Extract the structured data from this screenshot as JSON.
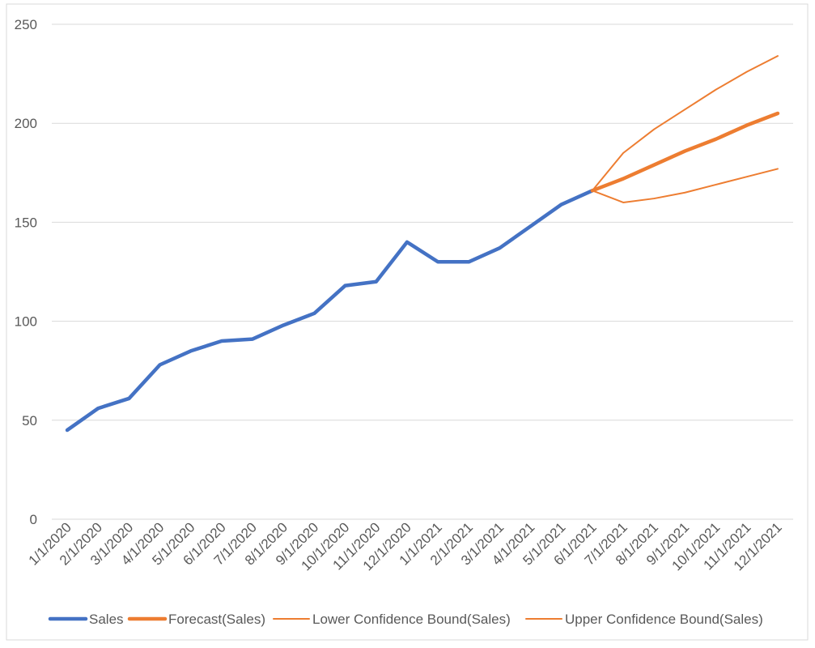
{
  "chart_data": {
    "type": "line",
    "title": "",
    "xlabel": "",
    "ylabel": "",
    "ylim": [
      0,
      250
    ],
    "yticks": [
      0,
      50,
      100,
      150,
      200,
      250
    ],
    "grid": true,
    "legend_position": "bottom",
    "categories": [
      "1/1/2020",
      "2/1/2020",
      "3/1/2020",
      "4/1/2020",
      "5/1/2020",
      "6/1/2020",
      "7/1/2020",
      "8/1/2020",
      "9/1/2020",
      "10/1/2020",
      "11/1/2020",
      "12/1/2020",
      "1/1/2021",
      "2/1/2021",
      "3/1/2021",
      "4/1/2021",
      "5/1/2021",
      "6/1/2021",
      "7/1/2021",
      "8/1/2021",
      "9/1/2021",
      "10/1/2021",
      "11/1/2021",
      "12/1/2021"
    ],
    "series": [
      {
        "name": "Sales",
        "color": "#4472C4",
        "values": [
          45,
          56,
          61,
          78,
          85,
          90,
          91,
          98,
          104,
          118,
          120,
          140,
          130,
          130,
          137,
          148,
          159,
          166,
          null,
          null,
          null,
          null,
          null,
          null
        ]
      },
      {
        "name": "Forecast(Sales)",
        "color": "#ED7D31",
        "values": [
          null,
          null,
          null,
          null,
          null,
          null,
          null,
          null,
          null,
          null,
          null,
          null,
          null,
          null,
          null,
          null,
          null,
          166,
          172,
          179,
          186,
          192,
          199,
          205
        ]
      },
      {
        "name": "Lower Confidence Bound(Sales)",
        "color": "#ED7D31",
        "values": [
          null,
          null,
          null,
          null,
          null,
          null,
          null,
          null,
          null,
          null,
          null,
          null,
          null,
          null,
          null,
          null,
          null,
          166,
          160,
          162,
          165,
          169,
          173,
          177
        ]
      },
      {
        "name": "Upper Confidence Bound(Sales)",
        "color": "#ED7D31",
        "values": [
          null,
          null,
          null,
          null,
          null,
          null,
          null,
          null,
          null,
          null,
          null,
          null,
          null,
          null,
          null,
          null,
          null,
          166,
          185,
          197,
          207,
          217,
          226,
          234
        ]
      }
    ]
  }
}
